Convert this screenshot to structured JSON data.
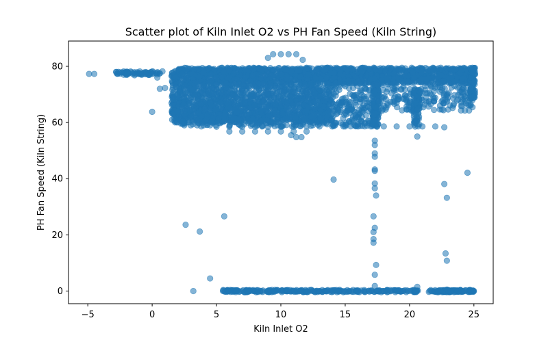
{
  "chart_data": {
    "type": "scatter",
    "title": "Scatter plot of Kiln Inlet O2 vs PH Fan Speed  (Kiln String)",
    "xlabel": "Kiln Inlet O2",
    "ylabel": "PH Fan Speed  (Kiln String)",
    "xlim": [
      -6.5,
      26.5
    ],
    "ylim": [
      -4.5,
      89
    ],
    "xticks": [
      -5,
      0,
      5,
      10,
      15,
      20,
      25
    ],
    "yticks": [
      0,
      20,
      40,
      60,
      80
    ],
    "grid": false,
    "legend": "none",
    "series": [
      {
        "color": "#1f77b4",
        "opacity": 0.55,
        "points": [
          [
            -4.9,
            77.3
          ],
          [
            -4.5,
            77.3
          ],
          [
            -2.8,
            78.0
          ],
          [
            -2.5,
            77.4
          ],
          [
            -2.0,
            77.2
          ],
          [
            -1.5,
            77.3
          ],
          [
            -1.0,
            77.4
          ],
          [
            -0.5,
            77.2
          ],
          [
            0.0,
            77.3
          ],
          [
            0.4,
            76.0
          ],
          [
            0.6,
            77.5
          ],
          [
            0.8,
            78.2
          ],
          [
            0.0,
            63.8
          ],
          [
            0.6,
            72.0
          ],
          [
            1.0,
            72.3
          ],
          [
            9.0,
            83.0
          ],
          [
            9.4,
            84.3
          ],
          [
            10.0,
            84.3
          ],
          [
            10.6,
            84.3
          ],
          [
            11.2,
            84.3
          ],
          [
            11.7,
            82.3
          ],
          [
            2.5,
            59.0
          ],
          [
            3.0,
            59.0
          ],
          [
            3.5,
            59.0
          ],
          [
            4.0,
            59.0
          ],
          [
            4.5,
            59.0
          ],
          [
            5.0,
            58.5
          ],
          [
            6.0,
            58.5
          ],
          [
            7.0,
            58.5
          ],
          [
            8.0,
            58.5
          ],
          [
            9.0,
            58.5
          ],
          [
            10.0,
            58.5
          ],
          [
            11.0,
            58.5
          ],
          [
            12.0,
            58.6
          ],
          [
            13.0,
            58.6
          ],
          [
            14.0,
            58.6
          ],
          [
            15.0,
            58.6
          ],
          [
            16.0,
            58.6
          ],
          [
            17.0,
            58.6
          ],
          [
            6.0,
            56.8
          ],
          [
            7.0,
            56.8
          ],
          [
            8.0,
            56.8
          ],
          [
            9.0,
            56.8
          ],
          [
            10.0,
            56.8
          ],
          [
            11.0,
            56.8
          ],
          [
            12.0,
            56.8
          ],
          [
            10.8,
            55.5
          ],
          [
            11.2,
            54.8
          ],
          [
            11.6,
            54.8
          ],
          [
            18.0,
            58.6
          ],
          [
            19.0,
            58.6
          ],
          [
            20.0,
            58.6
          ],
          [
            21.0,
            58.6
          ],
          [
            22.0,
            58.6
          ],
          [
            22.7,
            58.3
          ],
          [
            20.6,
            55.0
          ],
          [
            19.0,
            67.0
          ],
          [
            20.0,
            67.5
          ],
          [
            21.0,
            68.0
          ],
          [
            22.0,
            68.8
          ],
          [
            22.5,
            67.5
          ],
          [
            23.0,
            69.0
          ],
          [
            24.0,
            69.2
          ],
          [
            25.0,
            69.0
          ],
          [
            21.9,
            64.5
          ],
          [
            22.5,
            71.5
          ],
          [
            23.5,
            73.0
          ],
          [
            24.0,
            64.3
          ],
          [
            17.3,
            53.5
          ],
          [
            17.3,
            52.0
          ],
          [
            17.3,
            49.0
          ],
          [
            17.3,
            47.8
          ],
          [
            17.3,
            43.3
          ],
          [
            17.3,
            42.8
          ],
          [
            17.3,
            38.3
          ],
          [
            17.3,
            36.6
          ],
          [
            17.4,
            34.0
          ],
          [
            17.2,
            26.6
          ],
          [
            17.3,
            22.5
          ],
          [
            17.2,
            21.0
          ],
          [
            17.2,
            18.5
          ],
          [
            17.2,
            17.2
          ],
          [
            17.4,
            9.3
          ],
          [
            17.3,
            5.8
          ],
          [
            17.3,
            1.8
          ],
          [
            14.1,
            39.7
          ],
          [
            22.7,
            38.1
          ],
          [
            24.5,
            42.1
          ],
          [
            22.9,
            33.2
          ],
          [
            22.8,
            13.4
          ],
          [
            22.9,
            10.8
          ],
          [
            20.6,
            1.5
          ],
          [
            2.6,
            23.6
          ],
          [
            3.7,
            21.2
          ],
          [
            5.6,
            26.6
          ],
          [
            4.5,
            4.5
          ],
          [
            3.2,
            0.0
          ],
          [
            5.5,
            0.0
          ],
          [
            6.0,
            0.0
          ],
          [
            6.5,
            0.0
          ],
          [
            7.0,
            0.0
          ],
          [
            7.5,
            0.0
          ],
          [
            8.0,
            0.0
          ],
          [
            8.5,
            0.0
          ],
          [
            9.0,
            0.0
          ],
          [
            9.5,
            0.0
          ],
          [
            10.0,
            0.0
          ],
          [
            10.5,
            0.0
          ],
          [
            11.0,
            0.0
          ],
          [
            11.5,
            0.0
          ],
          [
            12.0,
            0.0
          ],
          [
            12.5,
            0.0
          ],
          [
            13.0,
            0.0
          ],
          [
            13.5,
            0.0
          ],
          [
            14.0,
            0.0
          ],
          [
            14.5,
            0.0
          ],
          [
            15.0,
            0.0
          ],
          [
            15.5,
            0.0
          ],
          [
            16.0,
            0.0
          ],
          [
            16.5,
            0.0
          ],
          [
            17.0,
            0.0
          ],
          [
            17.5,
            0.0
          ],
          [
            18.0,
            0.0
          ],
          [
            18.5,
            0.0
          ],
          [
            19.0,
            0.0
          ],
          [
            19.5,
            0.0
          ],
          [
            20.0,
            0.0
          ],
          [
            20.5,
            0.0
          ],
          [
            21.7,
            0.0
          ],
          [
            22.2,
            0.0
          ],
          [
            22.7,
            0.0
          ],
          [
            23.2,
            0.0
          ],
          [
            23.7,
            0.0
          ],
          [
            24.2,
            0.0
          ],
          [
            24.7,
            0.0
          ],
          [
            25.0,
            0.0
          ],
          [
            22.9,
            0.5
          ]
        ],
        "dense_regions": [
          {
            "x": [
              1.5,
              25.0
            ],
            "y": [
              74.0,
              79.5
            ],
            "count": 1700
          },
          {
            "x": [
              1.5,
              14.0
            ],
            "y": [
              60.0,
              74.0
            ],
            "count": 1300
          },
          {
            "x": [
              2.0,
              17.5
            ],
            "y": [
              58.5,
              67.5
            ],
            "count": 500
          },
          {
            "x": [
              14.0,
              25.0
            ],
            "y": [
              64.0,
              74.0
            ],
            "count": 250
          },
          {
            "x": [
              -2.8,
              0.6
            ],
            "y": [
              76.8,
              78.2
            ],
            "count": 60
          },
          {
            "x": [
              17.1,
              17.6
            ],
            "y": [
              58.5,
              74.0
            ],
            "count": 120
          },
          {
            "x": [
              20.3,
              20.8
            ],
            "y": [
              58.5,
              72.0
            ],
            "count": 80
          },
          {
            "x": [
              5.5,
              20.7
            ],
            "y": [
              -0.4,
              0.4
            ],
            "count": 260
          },
          {
            "x": [
              21.5,
              25.0
            ],
            "y": [
              -0.4,
              0.4
            ],
            "count": 100
          },
          {
            "x": [
              24.7,
              25.1
            ],
            "y": [
              68.5,
              79.5
            ],
            "count": 80
          }
        ]
      }
    ]
  }
}
